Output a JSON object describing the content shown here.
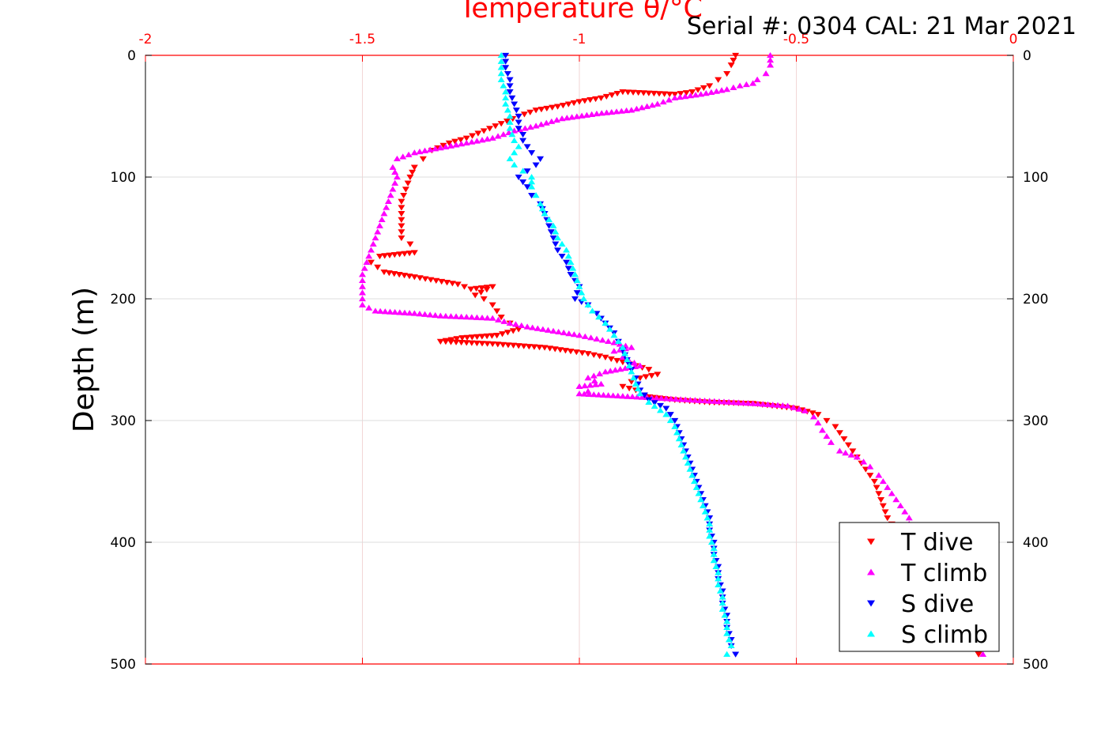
{
  "chart_data": {
    "type": "scatter",
    "title": "Temperature θ/°C",
    "annotation": "Serial #: 0304  CAL: 21 Mar 2021",
    "xlabel": "",
    "ylabel": "Depth (m)",
    "xlim": [
      -2,
      0
    ],
    "ylim": [
      0,
      500
    ],
    "y_reversed": true,
    "x_axis_position": "top",
    "x_ticks": [
      -2,
      -1.5,
      -1,
      -0.5,
      0
    ],
    "x_tick_labels": [
      "-2",
      "-1.5",
      "-1",
      "-0.5",
      "0"
    ],
    "y_ticks": [
      0,
      100,
      200,
      300,
      400,
      500
    ],
    "y_tick_labels": [
      "0",
      "100",
      "200",
      "300",
      "400",
      "500"
    ],
    "grid": true,
    "legend_position": "bottom-right",
    "series": [
      {
        "name": "T dive",
        "marker": "triangle-down",
        "color": "#ff0000",
        "points": [
          [
            -0.64,
            0
          ],
          [
            -0.65,
            8
          ],
          [
            -0.66,
            15
          ],
          [
            -0.68,
            20
          ],
          [
            -0.7,
            25
          ],
          [
            -0.74,
            30
          ],
          [
            -0.78,
            32
          ],
          [
            -0.9,
            30
          ],
          [
            -0.95,
            35
          ],
          [
            -1.0,
            38
          ],
          [
            -1.05,
            42
          ],
          [
            -1.1,
            45
          ],
          [
            -1.14,
            50
          ],
          [
            -1.18,
            56
          ],
          [
            -1.22,
            62
          ],
          [
            -1.26,
            68
          ],
          [
            -1.3,
            72
          ],
          [
            -1.34,
            78
          ],
          [
            -1.36,
            85
          ],
          [
            -1.38,
            92
          ],
          [
            -1.39,
            100
          ],
          [
            -1.4,
            110
          ],
          [
            -1.41,
            120
          ],
          [
            -1.41,
            130
          ],
          [
            -1.41,
            140
          ],
          [
            -1.41,
            150
          ],
          [
            -1.39,
            155
          ],
          [
            -1.38,
            162
          ],
          [
            -1.46,
            165
          ],
          [
            -1.48,
            170
          ],
          [
            -1.45,
            178
          ],
          [
            -1.38,
            182
          ],
          [
            -1.33,
            185
          ],
          [
            -1.28,
            188
          ],
          [
            -1.25,
            192
          ],
          [
            -1.2,
            190
          ],
          [
            -1.24,
            197
          ],
          [
            -1.22,
            200
          ],
          [
            -1.2,
            205
          ],
          [
            -1.19,
            210
          ],
          [
            -1.18,
            215
          ],
          [
            -1.16,
            220
          ],
          [
            -1.14,
            225
          ],
          [
            -1.19,
            230
          ],
          [
            -1.27,
            232
          ],
          [
            -1.32,
            235
          ],
          [
            -1.2,
            237
          ],
          [
            -1.08,
            240
          ],
          [
            -1.02,
            243
          ],
          [
            -0.98,
            245
          ],
          [
            -0.94,
            248
          ],
          [
            -0.9,
            252
          ],
          [
            -0.87,
            255
          ],
          [
            -0.84,
            258
          ],
          [
            -0.82,
            262
          ],
          [
            -0.86,
            265
          ],
          [
            -0.88,
            268
          ],
          [
            -0.9,
            272
          ],
          [
            -0.87,
            275
          ],
          [
            -0.85,
            280
          ],
          [
            -0.78,
            283
          ],
          [
            -0.7,
            285
          ],
          [
            -0.6,
            286
          ],
          [
            -0.5,
            290
          ],
          [
            -0.45,
            295
          ],
          [
            -0.43,
            300
          ],
          [
            -0.41,
            305
          ],
          [
            -0.4,
            310
          ],
          [
            -0.39,
            315
          ],
          [
            -0.38,
            320
          ],
          [
            -0.37,
            325
          ],
          [
            -0.36,
            330
          ],
          [
            -0.34,
            340
          ],
          [
            -0.32,
            350
          ],
          [
            -0.31,
            360
          ],
          [
            -0.3,
            370
          ],
          [
            -0.29,
            380
          ],
          [
            -0.28,
            385
          ],
          [
            -0.08,
            492
          ]
        ]
      },
      {
        "name": "T climb",
        "marker": "triangle-up",
        "color": "#ff00ff",
        "points": [
          [
            -0.56,
            0
          ],
          [
            -0.56,
            8
          ],
          [
            -0.57,
            15
          ],
          [
            -0.59,
            20
          ],
          [
            -0.6,
            23
          ],
          [
            -0.63,
            25
          ],
          [
            -0.66,
            28
          ],
          [
            -0.72,
            32
          ],
          [
            -0.78,
            35
          ],
          [
            -0.82,
            40
          ],
          [
            -0.88,
            45
          ],
          [
            -0.96,
            48
          ],
          [
            -1.04,
            52
          ],
          [
            -1.1,
            58
          ],
          [
            -1.15,
            62
          ],
          [
            -1.2,
            68
          ],
          [
            -1.26,
            72
          ],
          [
            -1.32,
            76
          ],
          [
            -1.38,
            80
          ],
          [
            -1.42,
            85
          ],
          [
            -1.43,
            92
          ],
          [
            -1.42,
            100
          ],
          [
            -1.43,
            110
          ],
          [
            -1.44,
            120
          ],
          [
            -1.45,
            130
          ],
          [
            -1.46,
            140
          ],
          [
            -1.47,
            150
          ],
          [
            -1.48,
            160
          ],
          [
            -1.49,
            170
          ],
          [
            -1.5,
            180
          ],
          [
            -1.5,
            190
          ],
          [
            -1.5,
            200
          ],
          [
            -1.5,
            205
          ],
          [
            -1.47,
            210
          ],
          [
            -1.38,
            212
          ],
          [
            -1.32,
            214
          ],
          [
            -1.26,
            215
          ],
          [
            -1.2,
            216
          ],
          [
            -1.16,
            220
          ],
          [
            -1.12,
            223
          ],
          [
            -1.0,
            230
          ],
          [
            -0.96,
            233
          ],
          [
            -0.92,
            236
          ],
          [
            -0.88,
            240
          ],
          [
            -0.92,
            243
          ],
          [
            -0.9,
            248
          ],
          [
            -0.86,
            255
          ],
          [
            -0.94,
            260
          ],
          [
            -0.98,
            265
          ],
          [
            -0.95,
            270
          ],
          [
            -1.0,
            272
          ],
          [
            -0.98,
            276
          ],
          [
            -1.0,
            278
          ],
          [
            -0.9,
            280
          ],
          [
            -0.8,
            282
          ],
          [
            -0.7,
            284
          ],
          [
            -0.6,
            286
          ],
          [
            -0.52,
            288
          ],
          [
            -0.48,
            292
          ],
          [
            -0.46,
            297
          ],
          [
            -0.45,
            302
          ],
          [
            -0.44,
            308
          ],
          [
            -0.43,
            313
          ],
          [
            -0.42,
            318
          ],
          [
            -0.4,
            325
          ],
          [
            -0.36,
            330
          ],
          [
            -0.33,
            338
          ],
          [
            -0.31,
            345
          ],
          [
            -0.29,
            355
          ],
          [
            -0.27,
            365
          ],
          [
            -0.25,
            375
          ],
          [
            -0.24,
            380
          ],
          [
            -0.24,
            385
          ],
          [
            -0.07,
            492
          ]
        ]
      },
      {
        "name": "S dive",
        "marker": "triangle-down",
        "color": "#0000ff",
        "points": [
          [
            -1.17,
            0
          ],
          [
            -1.17,
            10
          ],
          [
            -1.16,
            20
          ],
          [
            -1.16,
            30
          ],
          [
            -1.15,
            40
          ],
          [
            -1.14,
            50
          ],
          [
            -1.14,
            60
          ],
          [
            -1.13,
            65
          ],
          [
            -1.13,
            70
          ],
          [
            -1.12,
            75
          ],
          [
            -1.11,
            80
          ],
          [
            -1.09,
            85
          ],
          [
            -1.1,
            90
          ],
          [
            -1.12,
            95
          ],
          [
            -1.14,
            100
          ],
          [
            -1.12,
            108
          ],
          [
            -1.11,
            115
          ],
          [
            -1.09,
            122
          ],
          [
            -1.08,
            130
          ],
          [
            -1.07,
            140
          ],
          [
            -1.06,
            150
          ],
          [
            -1.05,
            160
          ],
          [
            -1.03,
            170
          ],
          [
            -1.02,
            180
          ],
          [
            -1.0,
            190
          ],
          [
            -1.01,
            200
          ],
          [
            -0.98,
            205
          ],
          [
            -0.96,
            212
          ],
          [
            -0.94,
            220
          ],
          [
            -0.92,
            228
          ],
          [
            -0.91,
            235
          ],
          [
            -0.9,
            242
          ],
          [
            -0.89,
            250
          ],
          [
            -0.88,
            258
          ],
          [
            -0.87,
            265
          ],
          [
            -0.86,
            275
          ],
          [
            -0.84,
            283
          ],
          [
            -0.8,
            290
          ],
          [
            -0.78,
            300
          ],
          [
            -0.77,
            310
          ],
          [
            -0.76,
            320
          ],
          [
            -0.75,
            330
          ],
          [
            -0.74,
            340
          ],
          [
            -0.73,
            350
          ],
          [
            -0.72,
            360
          ],
          [
            -0.71,
            370
          ],
          [
            -0.7,
            380
          ],
          [
            -0.7,
            390
          ],
          [
            -0.69,
            400
          ],
          [
            -0.69,
            410
          ],
          [
            -0.68,
            420
          ],
          [
            -0.68,
            430
          ],
          [
            -0.67,
            440
          ],
          [
            -0.67,
            450
          ],
          [
            -0.66,
            460
          ],
          [
            -0.66,
            470
          ],
          [
            -0.65,
            480
          ],
          [
            -0.65,
            485
          ],
          [
            -0.64,
            492
          ]
        ]
      },
      {
        "name": "S climb",
        "marker": "triangle-up",
        "color": "#00ffff",
        "points": [
          [
            -1.18,
            0
          ],
          [
            -1.18,
            10
          ],
          [
            -1.18,
            20
          ],
          [
            -1.17,
            30
          ],
          [
            -1.17,
            40
          ],
          [
            -1.16,
            50
          ],
          [
            -1.16,
            60
          ],
          [
            -1.15,
            70
          ],
          [
            -1.14,
            75
          ],
          [
            -1.15,
            80
          ],
          [
            -1.16,
            85
          ],
          [
            -1.15,
            90
          ],
          [
            -1.13,
            95
          ],
          [
            -1.11,
            100
          ],
          [
            -1.11,
            108
          ],
          [
            -1.1,
            115
          ],
          [
            -1.09,
            122
          ],
          [
            -1.08,
            130
          ],
          [
            -1.06,
            140
          ],
          [
            -1.05,
            150
          ],
          [
            -1.03,
            160
          ],
          [
            -1.02,
            170
          ],
          [
            -1.01,
            180
          ],
          [
            -1.0,
            190
          ],
          [
            -0.99,
            200
          ],
          [
            -0.97,
            210
          ],
          [
            -0.94,
            220
          ],
          [
            -0.92,
            230
          ],
          [
            -0.9,
            240
          ],
          [
            -0.89,
            250
          ],
          [
            -0.88,
            260
          ],
          [
            -0.87,
            270
          ],
          [
            -0.86,
            278
          ],
          [
            -0.84,
            285
          ],
          [
            -0.8,
            295
          ],
          [
            -0.78,
            305
          ],
          [
            -0.77,
            315
          ],
          [
            -0.76,
            325
          ],
          [
            -0.75,
            335
          ],
          [
            -0.74,
            345
          ],
          [
            -0.73,
            355
          ],
          [
            -0.72,
            365
          ],
          [
            -0.71,
            375
          ],
          [
            -0.7,
            385
          ],
          [
            -0.7,
            395
          ],
          [
            -0.69,
            405
          ],
          [
            -0.69,
            415
          ],
          [
            -0.68,
            425
          ],
          [
            -0.68,
            435
          ],
          [
            -0.67,
            445
          ],
          [
            -0.67,
            455
          ],
          [
            -0.66,
            465
          ],
          [
            -0.66,
            475
          ],
          [
            -0.65,
            485
          ],
          [
            -0.66,
            492
          ]
        ]
      }
    ]
  }
}
